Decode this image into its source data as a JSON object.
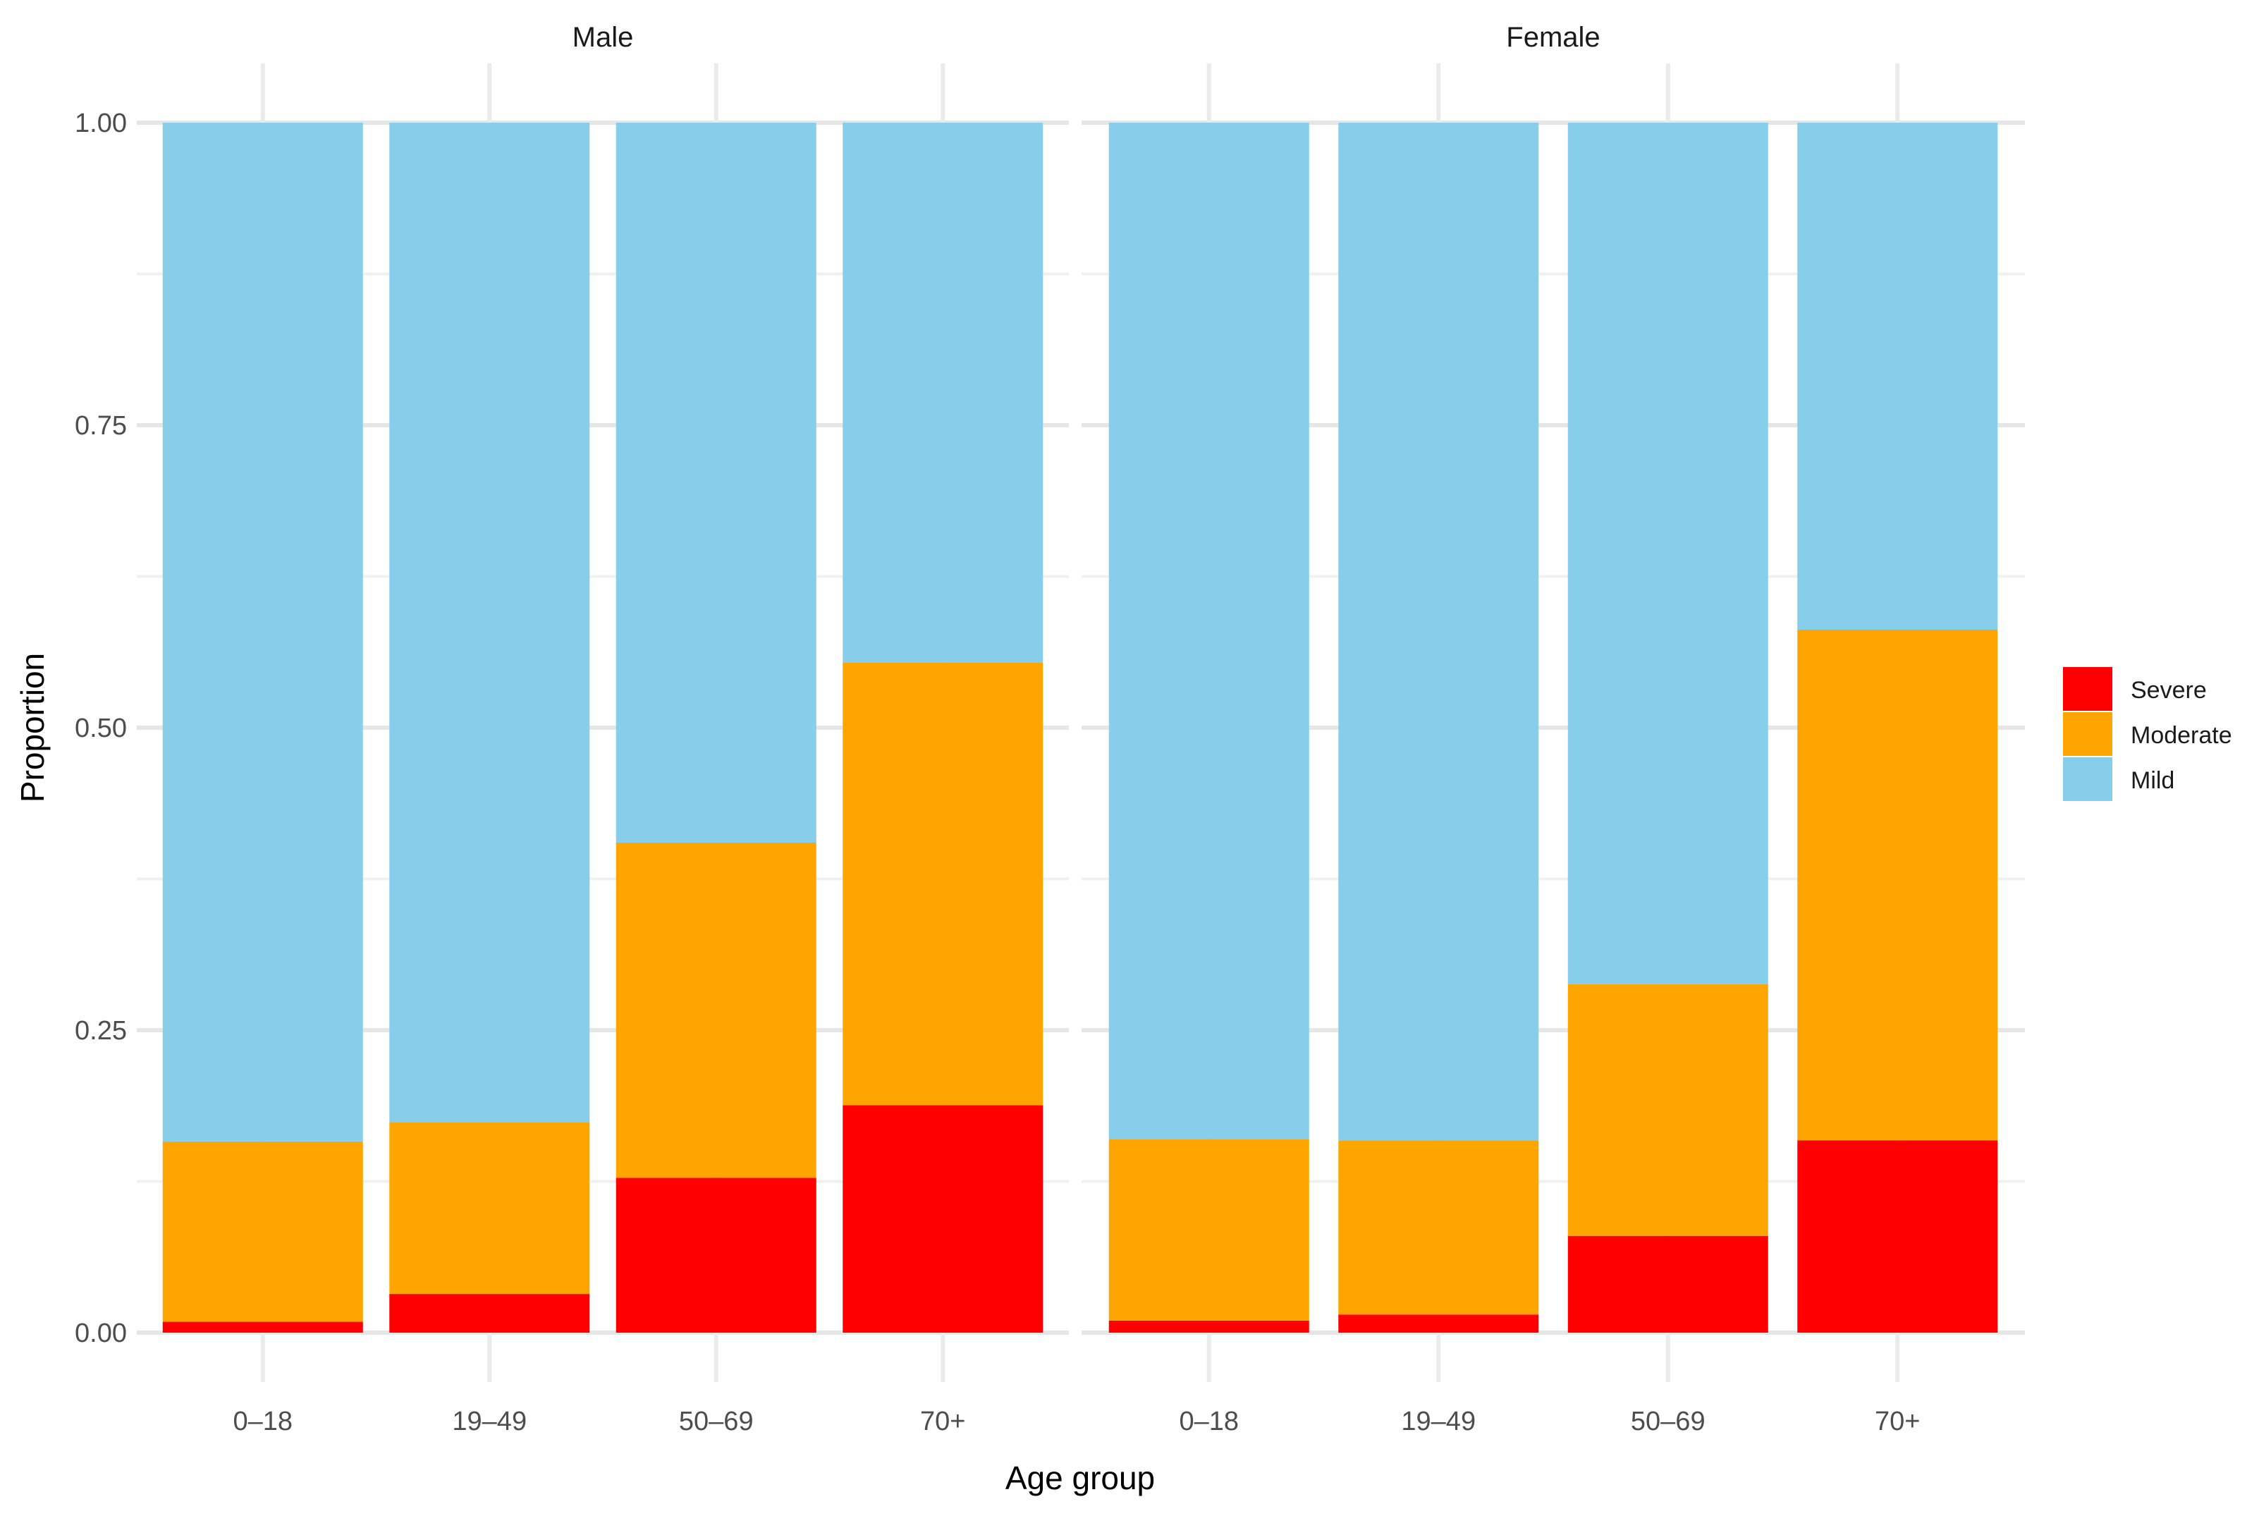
{
  "chart_data": {
    "type": "bar",
    "stacked": true,
    "ylabel": "Proportion",
    "xlabel": "Age group",
    "ylim": [
      0,
      1
    ],
    "yticks": [
      "0.00",
      "0.25",
      "0.50",
      "0.75",
      "1.00"
    ],
    "categories": [
      "0–18",
      "19–49",
      "50–69",
      "70+"
    ],
    "legend": [
      {
        "name": "Severe",
        "color": "#FF0000"
      },
      {
        "name": "Moderate",
        "color": "#FFA500"
      },
      {
        "name": "Mild",
        "color": "#87CEEB"
      }
    ],
    "panels": [
      {
        "title": "Male",
        "series": [
          {
            "name": "Severe",
            "values": [
              0.009,
              0.032,
              0.128,
              0.188
            ]
          },
          {
            "name": "Moderate",
            "values": [
              0.149,
              0.142,
              0.277,
              0.366
            ]
          },
          {
            "name": "Mild",
            "values": [
              0.842,
              0.826,
              0.595,
              0.446
            ]
          }
        ]
      },
      {
        "title": "Female",
        "series": [
          {
            "name": "Severe",
            "values": [
              0.01,
              0.015,
              0.08,
              0.159
            ]
          },
          {
            "name": "Moderate",
            "values": [
              0.15,
              0.144,
              0.208,
              0.422
            ]
          },
          {
            "name": "Mild",
            "values": [
              0.84,
              0.841,
              0.712,
              0.419
            ]
          }
        ]
      }
    ]
  }
}
